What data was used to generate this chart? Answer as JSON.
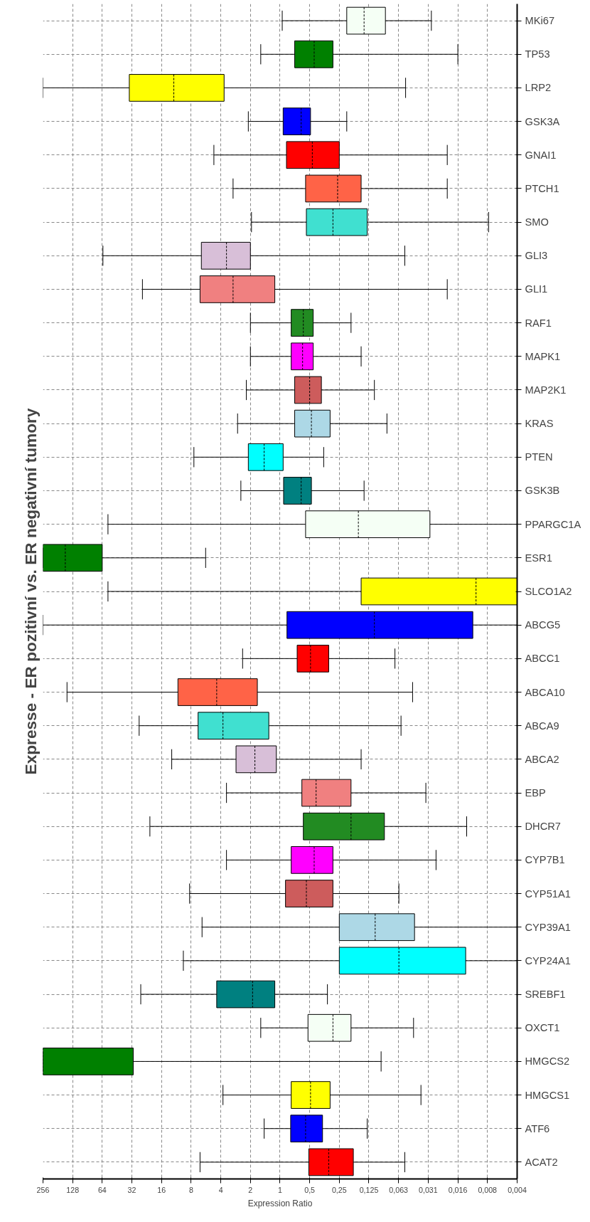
{
  "chart_data": {
    "type": "box",
    "orientation": "horizontal",
    "log": "x",
    "grid": true,
    "xlabel": "Expression Ratio",
    "ylabel": "Expresse - ER pozitivní vs. ER negativní tumory",
    "xlim": [
      256,
      0.0039
    ],
    "xticks": [
      256,
      128,
      64,
      32,
      16,
      8,
      4,
      2,
      1,
      {
        "value": 0.5,
        "label": "0,5"
      },
      {
        "value": 0.25,
        "label": "0,25"
      },
      {
        "value": 0.125,
        "label": "0,125"
      },
      {
        "value": 0.0625,
        "label": "0,063"
      },
      {
        "value": 0.03125,
        "label": "0,031"
      },
      {
        "value": 0.015625,
        "label": "0,016"
      },
      {
        "value": 0.0078125,
        "label": "0,008"
      },
      {
        "value": 0.0039,
        "label": "0,004"
      }
    ],
    "categories": [
      "MKi67",
      "TP53",
      "LRP2",
      "GSK3A",
      "GNAI1",
      "PTCH1",
      "SMO",
      "GLI3",
      "GLI1",
      "RAF1",
      "MAPK1",
      "MAP2K1",
      "KRAS",
      "PTEN",
      "GSK3B",
      "PPARGC1A",
      "ESR1",
      "SLCO1A2",
      "ABCG5",
      "ABCC1",
      "ABCA10",
      "ABCA9",
      "ABCA2",
      "EBP",
      "DHCR7",
      "CYP7B1",
      "CYP51A1",
      "CYP39A1",
      "CYP24A1",
      "SREBF1",
      "OXCT1",
      "HMGCS2",
      "HMGCS1",
      "ATF6",
      "ACAT2"
    ],
    "colors": [
      "#f5fff5",
      "#008000",
      "#ffff00",
      "#0000ff",
      "#ff0000",
      "#ff6347",
      "#40e0d0",
      "#d8bfd8",
      "#f08080",
      "#228b22",
      "#ff00ff",
      "#cd5c5c",
      "#add8e6",
      "#00ffff",
      "#008080",
      "#f5fff5",
      "#008000",
      "#ffff00",
      "#0000ff",
      "#ff0000",
      "#ff6347",
      "#40e0d0",
      "#d8bfd8",
      "#f08080",
      "#228b22",
      "#ff00ff",
      "#cd5c5c",
      "#add8e6",
      "#00ffff",
      "#008080",
      "#f5fff5",
      "#008000",
      "#ffff00",
      "#0000ff",
      "#ff0000"
    ],
    "boxes": [
      {
        "high": 0.95,
        "q3": 0.21,
        "median": 0.14,
        "q1": 0.085,
        "low": 0.029
      },
      {
        "high": 1.57,
        "q3": 0.71,
        "median": 0.45,
        "q1": 0.29,
        "low": 0.0156
      },
      {
        "high": 256,
        "q3": 34,
        "median": 12,
        "q1": 3.7,
        "low": 0.053
      },
      {
        "high": 2.1,
        "q3": 0.93,
        "median": 0.61,
        "q1": 0.49,
        "low": 0.21
      },
      {
        "high": 4.7,
        "q3": 0.86,
        "median": 0.47,
        "q1": 0.25,
        "low": 0.02
      },
      {
        "high": 3.0,
        "q3": 0.55,
        "median": 0.26,
        "q1": 0.15,
        "low": 0.02
      },
      {
        "high": 1.95,
        "q3": 0.54,
        "median": 0.29,
        "q1": 0.13,
        "low": 0.0076
      },
      {
        "high": 63,
        "q3": 6.3,
        "median": 3.5,
        "q1": 2.0,
        "low": 0.054
      },
      {
        "high": 25,
        "q3": 6.5,
        "median": 3.0,
        "q1": 1.13,
        "low": 0.02
      },
      {
        "high": 2.0,
        "q3": 0.77,
        "median": 0.58,
        "q1": 0.46,
        "low": 0.19
      },
      {
        "high": 2.0,
        "q3": 0.77,
        "median": 0.59,
        "q1": 0.46,
        "low": 0.15
      },
      {
        "high": 2.2,
        "q3": 0.71,
        "median": 0.5,
        "q1": 0.38,
        "low": 0.11
      },
      {
        "high": 2.7,
        "q3": 0.71,
        "median": 0.48,
        "q1": 0.31,
        "low": 0.082
      },
      {
        "high": 7.5,
        "q3": 2.1,
        "median": 1.45,
        "q1": 0.93,
        "low": 0.36
      },
      {
        "high": 2.5,
        "q3": 0.92,
        "median": 0.61,
        "q1": 0.48,
        "low": 0.14
      },
      {
        "high": 56,
        "q3": 0.55,
        "median": 0.16,
        "q1": 0.03,
        "low": 0.0039
      },
      {
        "high": 256,
        "q3": 256,
        "median": 152,
        "q1": 64,
        "low": 5.7
      },
      {
        "high": 56,
        "q3": 0.15,
        "median": 0.0102,
        "q1": 0.0039,
        "low": 0.0039
      },
      {
        "high": 256,
        "q3": 0.85,
        "median": 0.11,
        "q1": 0.011,
        "low": 0.0039
      },
      {
        "high": 2.4,
        "q3": 0.67,
        "median": 0.49,
        "q1": 0.32,
        "low": 0.068
      },
      {
        "high": 146,
        "q3": 10.9,
        "median": 4.4,
        "q1": 1.7,
        "low": 0.045
      },
      {
        "high": 27,
        "q3": 6.8,
        "median": 3.8,
        "q1": 1.3,
        "low": 0.059
      },
      {
        "high": 12.6,
        "q3": 2.8,
        "median": 1.8,
        "q1": 1.09,
        "low": 0.15
      },
      {
        "high": 3.5,
        "q3": 0.6,
        "median": 0.43,
        "q1": 0.19,
        "low": 0.033
      },
      {
        "high": 21,
        "q3": 0.58,
        "median": 0.19,
        "q1": 0.087,
        "low": 0.0127
      },
      {
        "high": 3.5,
        "q3": 0.77,
        "median": 0.45,
        "q1": 0.29,
        "low": 0.026
      },
      {
        "high": 8.3,
        "q3": 0.88,
        "median": 0.54,
        "q1": 0.29,
        "low": 0.062
      },
      {
        "high": 6.2,
        "q3": 0.25,
        "median": 0.108,
        "q1": 0.043,
        "low": 0.0039
      },
      {
        "high": 9.6,
        "q3": 0.25,
        "median": 0.062,
        "q1": 0.013,
        "low": 0.0039
      },
      {
        "high": 26,
        "q3": 4.4,
        "median": 1.9,
        "q1": 1.13,
        "low": 0.33
      },
      {
        "high": 1.57,
        "q3": 0.52,
        "median": 0.29,
        "q1": 0.19,
        "low": 0.044
      },
      {
        "high": 256,
        "q3": 256,
        "median": 256,
        "q1": 31,
        "low": 0.094
      },
      {
        "high": 3.8,
        "q3": 0.77,
        "median": 0.49,
        "q1": 0.31,
        "low": 0.037
      },
      {
        "high": 1.45,
        "q3": 0.78,
        "median": 0.55,
        "q1": 0.37,
        "low": 0.13
      },
      {
        "high": 6.5,
        "q3": 0.51,
        "median": 0.32,
        "q1": 0.18,
        "low": 0.054
      }
    ]
  }
}
